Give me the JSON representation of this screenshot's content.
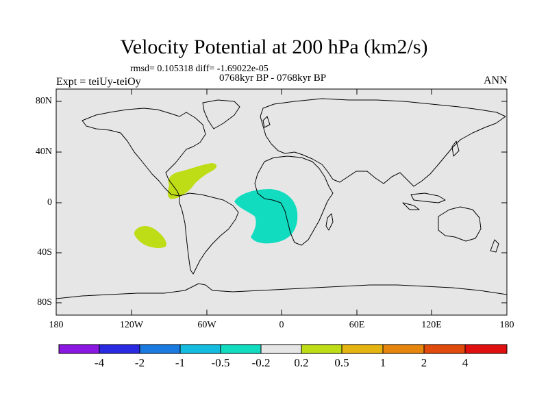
{
  "title": "Velocity Potential at 200 hPa (km2/s)",
  "stats": "rmsd= 0.105318 diff= -1.69022e-05",
  "period": "0768kyr BP - 0768kyr BP",
  "experiment": "Expt = teiUy-teiOy",
  "season": "ANN",
  "lat_labels": [
    "80N",
    "40N",
    "0",
    "40S",
    "80S"
  ],
  "lon_labels": [
    "180",
    "120W",
    "60W",
    "0",
    "60E",
    "120E",
    "180"
  ],
  "colorbar": {
    "colors": [
      "#8a18e0",
      "#2a2ae0",
      "#1a7ae0",
      "#14bde0",
      "#12dcc0",
      "#e6e6e6",
      "#bfdd16",
      "#e6b410",
      "#e6860e",
      "#e04a0c",
      "#e01010"
    ],
    "labels": [
      "-4",
      "-2",
      "-1",
      "-0.5",
      "-0.2",
      "0.2",
      "0.5",
      "1",
      "2",
      "4"
    ]
  },
  "colors": {
    "ocean": "#e6e6e6",
    "positive": "#bfdd16",
    "negative": "#12dcc0"
  }
}
